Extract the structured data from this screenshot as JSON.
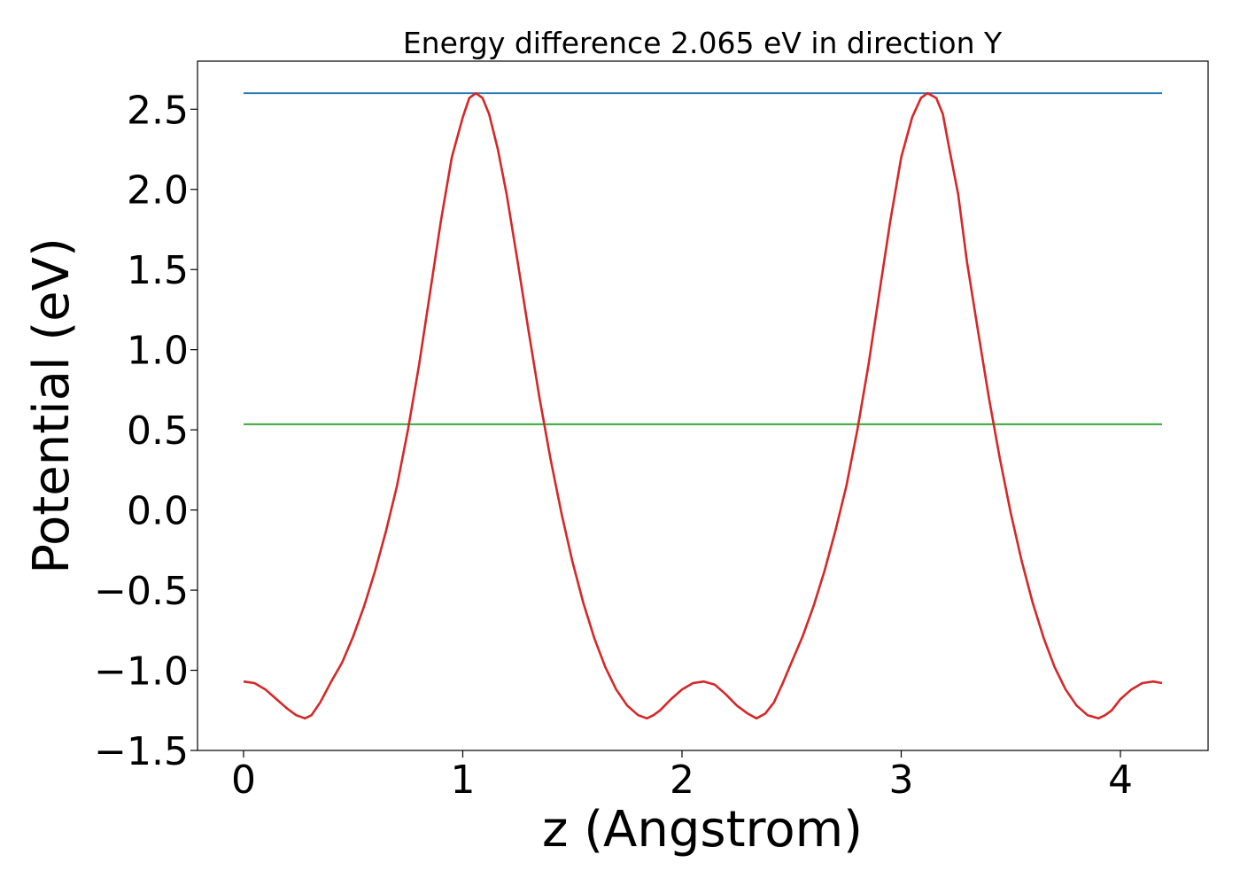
{
  "chart_data": {
    "type": "line",
    "title": "Energy difference 2.065 eV in direction Y",
    "xlabel": "z (Angstrom)",
    "ylabel": "Potential (eV)",
    "xlim": [
      -0.21,
      4.4
    ],
    "ylim": [
      -1.5,
      2.8
    ],
    "grid": false,
    "x_ticks": [
      0,
      1,
      2,
      3,
      4
    ],
    "x_tick_labels": [
      "0",
      "1",
      "2",
      "3",
      "4"
    ],
    "y_ticks": [
      -1.5,
      -1.0,
      -0.5,
      0.0,
      0.5,
      1.0,
      1.5,
      2.0,
      2.5
    ],
    "y_tick_labels": [
      "−1.5",
      "−1.0",
      "−0.5",
      "0.0",
      "0.5",
      "1.0",
      "1.5",
      "2.0",
      "2.5"
    ],
    "series": [
      {
        "color": "#1f77b4",
        "x": [
          0,
          4.19
        ],
        "y": [
          2.6,
          2.6
        ]
      },
      {
        "color": "#2ca02c",
        "x": [
          0,
          4.19
        ],
        "y": [
          0.535,
          0.535
        ]
      },
      {
        "color": "#d62728",
        "x": [
          0,
          0.05,
          0.1,
          0.15,
          0.2,
          0.24,
          0.28,
          0.31,
          0.35,
          0.4,
          0.45,
          0.5,
          0.55,
          0.6,
          0.65,
          0.7,
          0.75,
          0.8,
          0.85,
          0.9,
          0.95,
          1.0,
          1.03,
          1.06,
          1.09,
          1.12,
          1.16,
          1.2,
          1.25,
          1.3,
          1.35,
          1.4,
          1.45,
          1.5,
          1.55,
          1.6,
          1.65,
          1.7,
          1.75,
          1.8,
          1.84,
          1.87,
          1.9,
          1.95,
          2.0,
          2.05,
          2.1,
          2.15,
          2.2,
          2.25,
          2.3,
          2.34,
          2.38,
          2.42,
          2.46,
          2.5,
          2.55,
          2.6,
          2.65,
          2.7,
          2.75,
          2.8,
          2.85,
          2.9,
          2.95,
          3.0,
          3.05,
          3.09,
          3.12,
          3.16,
          3.19,
          3.22,
          3.26,
          3.3,
          3.35,
          3.4,
          3.45,
          3.5,
          3.55,
          3.6,
          3.65,
          3.7,
          3.75,
          3.8,
          3.85,
          3.9,
          3.93,
          3.96,
          4.0,
          4.05,
          4.1,
          4.15,
          4.19
        ],
        "y": [
          -1.07,
          -1.08,
          -1.12,
          -1.18,
          -1.24,
          -1.28,
          -1.3,
          -1.28,
          -1.2,
          -1.07,
          -0.95,
          -0.79,
          -0.6,
          -0.38,
          -0.13,
          0.15,
          0.5,
          0.9,
          1.35,
          1.8,
          2.2,
          2.45,
          2.57,
          2.6,
          2.57,
          2.47,
          2.25,
          1.97,
          1.55,
          1.12,
          0.7,
          0.32,
          -0.02,
          -0.32,
          -0.58,
          -0.8,
          -0.98,
          -1.12,
          -1.22,
          -1.28,
          -1.3,
          -1.28,
          -1.25,
          -1.18,
          -1.12,
          -1.08,
          -1.07,
          -1.09,
          -1.15,
          -1.22,
          -1.27,
          -1.3,
          -1.27,
          -1.2,
          -1.08,
          -0.95,
          -0.79,
          -0.6,
          -0.38,
          -0.13,
          0.15,
          0.5,
          0.9,
          1.35,
          1.8,
          2.2,
          2.45,
          2.57,
          2.6,
          2.57,
          2.47,
          2.25,
          1.97,
          1.55,
          1.12,
          0.7,
          0.32,
          -0.02,
          -0.32,
          -0.58,
          -0.8,
          -0.98,
          -1.12,
          -1.22,
          -1.28,
          -1.3,
          -1.28,
          -1.25,
          -1.18,
          -1.12,
          -1.08,
          -1.07,
          -1.08
        ]
      }
    ]
  }
}
